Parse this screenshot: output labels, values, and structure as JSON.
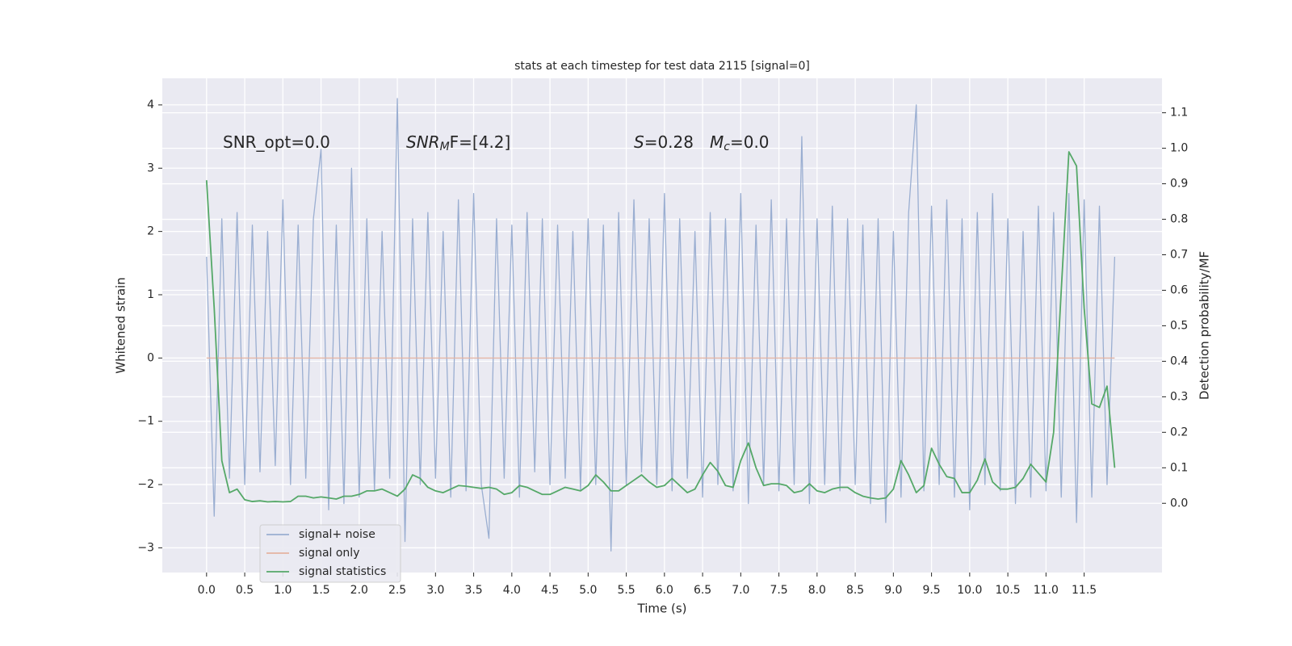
{
  "chart_data": {
    "type": "line",
    "title": "stats at each timestep for test data 2115 [signal=0]",
    "xlabel": "Time (s)",
    "ylabel": "Whitened strain",
    "y2label": "Detection probability/MF",
    "annotations": [
      {
        "text": "SNR_opt=0.0"
      },
      {
        "main": "SNR",
        "sub": "M",
        "rest": "F=[4.2]"
      },
      {
        "main": "S",
        "rest": "=0.28",
        "main2": "M",
        "sub2": "c",
        "rest2": "=0.0"
      }
    ],
    "xlim": [
      -0.58,
      12.52
    ],
    "ylim": [
      -3.39,
      4.42
    ],
    "y2lim": [
      -0.195,
      1.197
    ],
    "xticks": [
      {
        "value": 0,
        "label": "0.0"
      },
      0.5,
      {
        "value": 1,
        "label": "1.0"
      },
      1.5,
      {
        "value": 2,
        "label": "2.0"
      },
      2.5,
      {
        "value": 3,
        "label": "3.0"
      },
      3.5,
      {
        "value": 4,
        "label": "4.0"
      },
      4.5,
      {
        "value": 5,
        "label": "5.0"
      },
      5.5,
      {
        "value": 6,
        "label": "6.0"
      },
      6.5,
      {
        "value": 7,
        "label": "7.0"
      },
      7.5,
      {
        "value": 8,
        "label": "8.0"
      },
      8.5,
      {
        "value": 9,
        "label": "9.0"
      },
      9.5,
      {
        "value": 10,
        "label": "10.0"
      },
      10.5,
      {
        "value": 11,
        "label": "11.0"
      },
      11.5
    ],
    "yticks": [
      {
        "value": -3,
        "label": "−3"
      },
      {
        "value": -2,
        "label": "−2"
      },
      {
        "value": -1,
        "label": "−1"
      },
      0,
      1,
      2,
      3,
      4
    ],
    "y2ticks": [
      {
        "value": 0,
        "label": "0.0"
      },
      0.1,
      0.2,
      0.3,
      0.4,
      0.5,
      0.6,
      0.7,
      0.8,
      0.9,
      {
        "value": 1,
        "label": "1.0"
      },
      1.1
    ],
    "grid": true,
    "legend": "lower left",
    "x": [
      0,
      0.1,
      0.2,
      0.3,
      0.4,
      0.5,
      0.6,
      0.7,
      0.8,
      0.9,
      1,
      1.1,
      1.2,
      1.3,
      1.4,
      1.5,
      1.6,
      1.7,
      1.8,
      1.9,
      2,
      2.1,
      2.2,
      2.3,
      2.4,
      2.5,
      2.6,
      2.7,
      2.8,
      2.9,
      3,
      3.1,
      3.2,
      3.3,
      3.4,
      3.5,
      3.6,
      3.7,
      3.8,
      3.9,
      4,
      4.1,
      4.2,
      4.3,
      4.4,
      4.5,
      4.6,
      4.7,
      4.8,
      4.9,
      5,
      5.1,
      5.2,
      5.3,
      5.4,
      5.5,
      5.6,
      5.7,
      5.8,
      5.9,
      6,
      6.1,
      6.2,
      6.3,
      6.4,
      6.5,
      6.6,
      6.7,
      6.8,
      6.9,
      7,
      7.1,
      7.2,
      7.3,
      7.4,
      7.5,
      7.6,
      7.7,
      7.8,
      7.9,
      8,
      8.1,
      8.2,
      8.3,
      8.4,
      8.5,
      8.6,
      8.7,
      8.8,
      8.9,
      9,
      9.1,
      9.2,
      9.3,
      9.4,
      9.5,
      9.6,
      9.7,
      9.8,
      9.9,
      10,
      10.1,
      10.2,
      10.3,
      10.4,
      10.5,
      10.6,
      10.7,
      10.8,
      10.9,
      11,
      11.1,
      11.2,
      11.3,
      11.4,
      11.5,
      11.6,
      11.7,
      11.8,
      11.9
    ],
    "series": [
      {
        "name": "signal+ noise",
        "color": "#9aaed1",
        "values": [
          1.6,
          -2.5,
          2.2,
          -1.9,
          2.3,
          -2.0,
          2.1,
          -1.8,
          2.0,
          -1.7,
          2.5,
          -2.0,
          2.1,
          -1.9,
          2.2,
          3.3,
          -2.4,
          2.1,
          -2.3,
          3.0,
          -2.2,
          2.2,
          -2.1,
          2.0,
          -1.9,
          4.1,
          -2.9,
          2.2,
          -2.0,
          2.3,
          -1.9,
          2.0,
          -2.2,
          2.5,
          -2.1,
          2.6,
          -2.0,
          -2.85,
          2.2,
          -1.9,
          2.1,
          -2.2,
          2.3,
          -1.8,
          2.2,
          -2.0,
          2.1,
          -1.9,
          2.0,
          -2.1,
          2.2,
          -2.0,
          2.1,
          -3.05,
          2.3,
          -2.0,
          2.5,
          -1.8,
          2.2,
          -2.0,
          2.6,
          -2.1,
          2.2,
          -1.9,
          2.0,
          -2.2,
          2.3,
          -2.0,
          2.2,
          -2.1,
          2.6,
          -2.3,
          2.1,
          -2.0,
          2.5,
          -2.1,
          2.2,
          -2.0,
          3.5,
          -2.3,
          2.2,
          -2.0,
          2.4,
          -2.1,
          2.2,
          -2.0,
          2.1,
          -2.3,
          2.2,
          -2.6,
          2.0,
          -2.2,
          2.3,
          4.0,
          -2.1,
          2.4,
          -2.0,
          2.5,
          -2.2,
          2.2,
          -2.4,
          2.3,
          -2.0,
          2.6,
          -2.1,
          2.2,
          -2.3,
          2.0,
          -2.2,
          2.4,
          -2.1,
          2.3,
          -2.2,
          2.6,
          -2.6,
          2.5,
          -2.2,
          2.4,
          -2.0,
          1.6
        ]
      },
      {
        "name": "signal only",
        "color": "#e4b3a1",
        "values": [
          0,
          0,
          0,
          0,
          0,
          0,
          0,
          0,
          0,
          0,
          0,
          0,
          0,
          0,
          0,
          0,
          0,
          0,
          0,
          0,
          0,
          0,
          0,
          0,
          0,
          0,
          0,
          0,
          0,
          0,
          0,
          0,
          0,
          0,
          0,
          0,
          0,
          0,
          0,
          0,
          0,
          0,
          0,
          0,
          0,
          0,
          0,
          0,
          0,
          0,
          0,
          0,
          0,
          0,
          0,
          0,
          0,
          0,
          0,
          0,
          0,
          0,
          0,
          0,
          0,
          0,
          0,
          0,
          0,
          0,
          0,
          0,
          0,
          0,
          0,
          0,
          0,
          0,
          0,
          0,
          0,
          0,
          0,
          0,
          0,
          0,
          0,
          0,
          0,
          0,
          0,
          0,
          0,
          0,
          0,
          0,
          0,
          0,
          0,
          0,
          0,
          0,
          0,
          0,
          0,
          0,
          0,
          0,
          0,
          0,
          0,
          0,
          0,
          0,
          0,
          0,
          0,
          0,
          0,
          0
        ]
      },
      {
        "name": "signal statistics",
        "color": "#55a868",
        "axis": "y2",
        "values": [
          0.91,
          0.55,
          0.12,
          0.03,
          0.04,
          0.01,
          0.005,
          0.007,
          0.004,
          0.005,
          0.004,
          0.005,
          0.02,
          0.02,
          0.015,
          0.018,
          0.015,
          0.012,
          0.02,
          0.02,
          0.025,
          0.035,
          0.035,
          0.04,
          0.03,
          0.02,
          0.04,
          0.08,
          0.07,
          0.045,
          0.035,
          0.03,
          0.04,
          0.05,
          0.048,
          0.045,
          0.042,
          0.045,
          0.04,
          0.025,
          0.03,
          0.05,
          0.045,
          0.035,
          0.025,
          0.025,
          0.035,
          0.045,
          0.04,
          0.035,
          0.05,
          0.08,
          0.06,
          0.035,
          0.035,
          0.05,
          0.065,
          0.08,
          0.06,
          0.045,
          0.05,
          0.07,
          0.05,
          0.03,
          0.04,
          0.08,
          0.115,
          0.09,
          0.05,
          0.045,
          0.12,
          0.17,
          0.1,
          0.05,
          0.055,
          0.055,
          0.05,
          0.03,
          0.035,
          0.055,
          0.035,
          0.03,
          0.04,
          0.045,
          0.045,
          0.03,
          0.02,
          0.015,
          0.012,
          0.015,
          0.04,
          0.12,
          0.08,
          0.03,
          0.05,
          0.155,
          0.11,
          0.075,
          0.07,
          0.03,
          0.03,
          0.065,
          0.125,
          0.06,
          0.04,
          0.04,
          0.045,
          0.07,
          0.11,
          0.085,
          0.06,
          0.2,
          0.6,
          0.99,
          0.95,
          0.55,
          0.28,
          0.27,
          0.33,
          0.1
        ]
      }
    ]
  }
}
